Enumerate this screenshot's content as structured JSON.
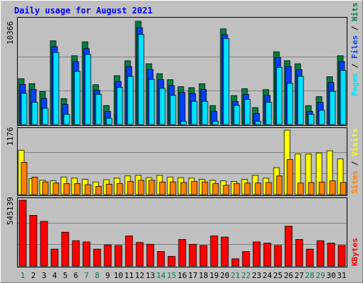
{
  "title": "Daily usage for August 2021",
  "colors": {
    "background": "#c0c0c0",
    "title": "#0000ff",
    "hits": "#008040",
    "files": "#0040ff",
    "pages": "#00e0ff",
    "visits": "#ffff00",
    "sites": "#ff8000",
    "kbytes": "#ff0000",
    "weekend_label": "#008040",
    "weekday_label": "#000000"
  },
  "chart_data": [
    {
      "type": "bar",
      "title": "Daily usage for August 2021",
      "ylabel_max": "10366",
      "ylim": [
        0,
        10366
      ],
      "legend": [
        "Pages",
        "Files",
        "Hits"
      ],
      "categories": [
        "1",
        "2",
        "3",
        "4",
        "5",
        "6",
        "7",
        "8",
        "9",
        "10",
        "11",
        "12",
        "13",
        "14",
        "15",
        "16",
        "17",
        "18",
        "19",
        "20",
        "21",
        "22",
        "23",
        "24",
        "25",
        "26",
        "27",
        "28",
        "29",
        "30",
        "31"
      ],
      "weekend_days": [
        "1",
        "7",
        "8",
        "14",
        "15",
        "21",
        "22",
        "28",
        "29"
      ],
      "series": [
        {
          "name": "Hits",
          "values": [
            4600,
            4100,
            3300,
            8400,
            2600,
            6900,
            8300,
            4000,
            1900,
            4900,
            6400,
            10366,
            6100,
            5100,
            4500,
            3800,
            3700,
            4100,
            1900,
            9600,
            2900,
            3600,
            1700,
            3500,
            7300,
            6400,
            6100,
            1900,
            2800,
            4800,
            6900
          ]
        },
        {
          "name": "Files",
          "values": [
            4300,
            3800,
            2900,
            8100,
            2300,
            6600,
            7900,
            3700,
            1600,
            4600,
            6100,
            10000,
            5800,
            4800,
            4200,
            3500,
            3400,
            3800,
            1600,
            9300,
            2600,
            3300,
            1400,
            3200,
            7000,
            6100,
            5800,
            1600,
            2500,
            4500,
            6600
          ]
        },
        {
          "name": "Pages",
          "values": [
            3700,
            2800,
            2200,
            7800,
            1600,
            5900,
            7600,
            3600,
            1200,
            4300,
            5400,
            9600,
            5100,
            4200,
            3500,
            900,
            2900,
            2900,
            900,
            9200,
            2500,
            3100,
            900,
            2800,
            6300,
            4700,
            5400,
            1600,
            2000,
            3900,
            6000
          ]
        }
      ]
    },
    {
      "type": "bar",
      "ylabel_max": "1176",
      "ylim": [
        0,
        1176
      ],
      "legend": [
        "Sites",
        "Visits"
      ],
      "categories": [
        "1",
        "2",
        "3",
        "4",
        "5",
        "6",
        "7",
        "8",
        "9",
        "10",
        "11",
        "12",
        "13",
        "14",
        "15",
        "16",
        "17",
        "18",
        "19",
        "20",
        "21",
        "22",
        "23",
        "24",
        "25",
        "26",
        "27",
        "28",
        "29",
        "30",
        "31"
      ],
      "series": [
        {
          "name": "Visits",
          "values": [
            810,
            290,
            260,
            250,
            320,
            300,
            280,
            230,
            270,
            300,
            340,
            350,
            310,
            350,
            320,
            310,
            300,
            280,
            260,
            250,
            240,
            280,
            350,
            300,
            490,
            1176,
            740,
            740,
            760,
            800,
            650
          ]
        },
        {
          "name": "Sites",
          "values": [
            590,
            320,
            230,
            210,
            200,
            200,
            180,
            150,
            190,
            200,
            240,
            260,
            260,
            230,
            230,
            220,
            240,
            230,
            200,
            170,
            200,
            210,
            210,
            220,
            340,
            640,
            210,
            220,
            230,
            250,
            220
          ]
        }
      ]
    },
    {
      "type": "bar",
      "ylabel_max": "545139",
      "ylim": [
        0,
        545139
      ],
      "legend": [
        "KBytes"
      ],
      "categories": [
        "1",
        "2",
        "3",
        "4",
        "5",
        "6",
        "7",
        "8",
        "9",
        "10",
        "11",
        "12",
        "13",
        "14",
        "15",
        "16",
        "17",
        "18",
        "19",
        "20",
        "21",
        "22",
        "23",
        "24",
        "25",
        "26",
        "27",
        "28",
        "29",
        "30",
        "31"
      ],
      "series": [
        {
          "name": "KBytes",
          "values": [
            545139,
            420000,
            370000,
            140000,
            280000,
            210000,
            200000,
            140000,
            175000,
            170000,
            250000,
            195000,
            180000,
            120000,
            80000,
            220000,
            180000,
            170000,
            250000,
            240000,
            60000,
            120000,
            200000,
            190000,
            170000,
            330000,
            220000,
            140000,
            210000,
            190000,
            170000
          ]
        }
      ]
    }
  ]
}
